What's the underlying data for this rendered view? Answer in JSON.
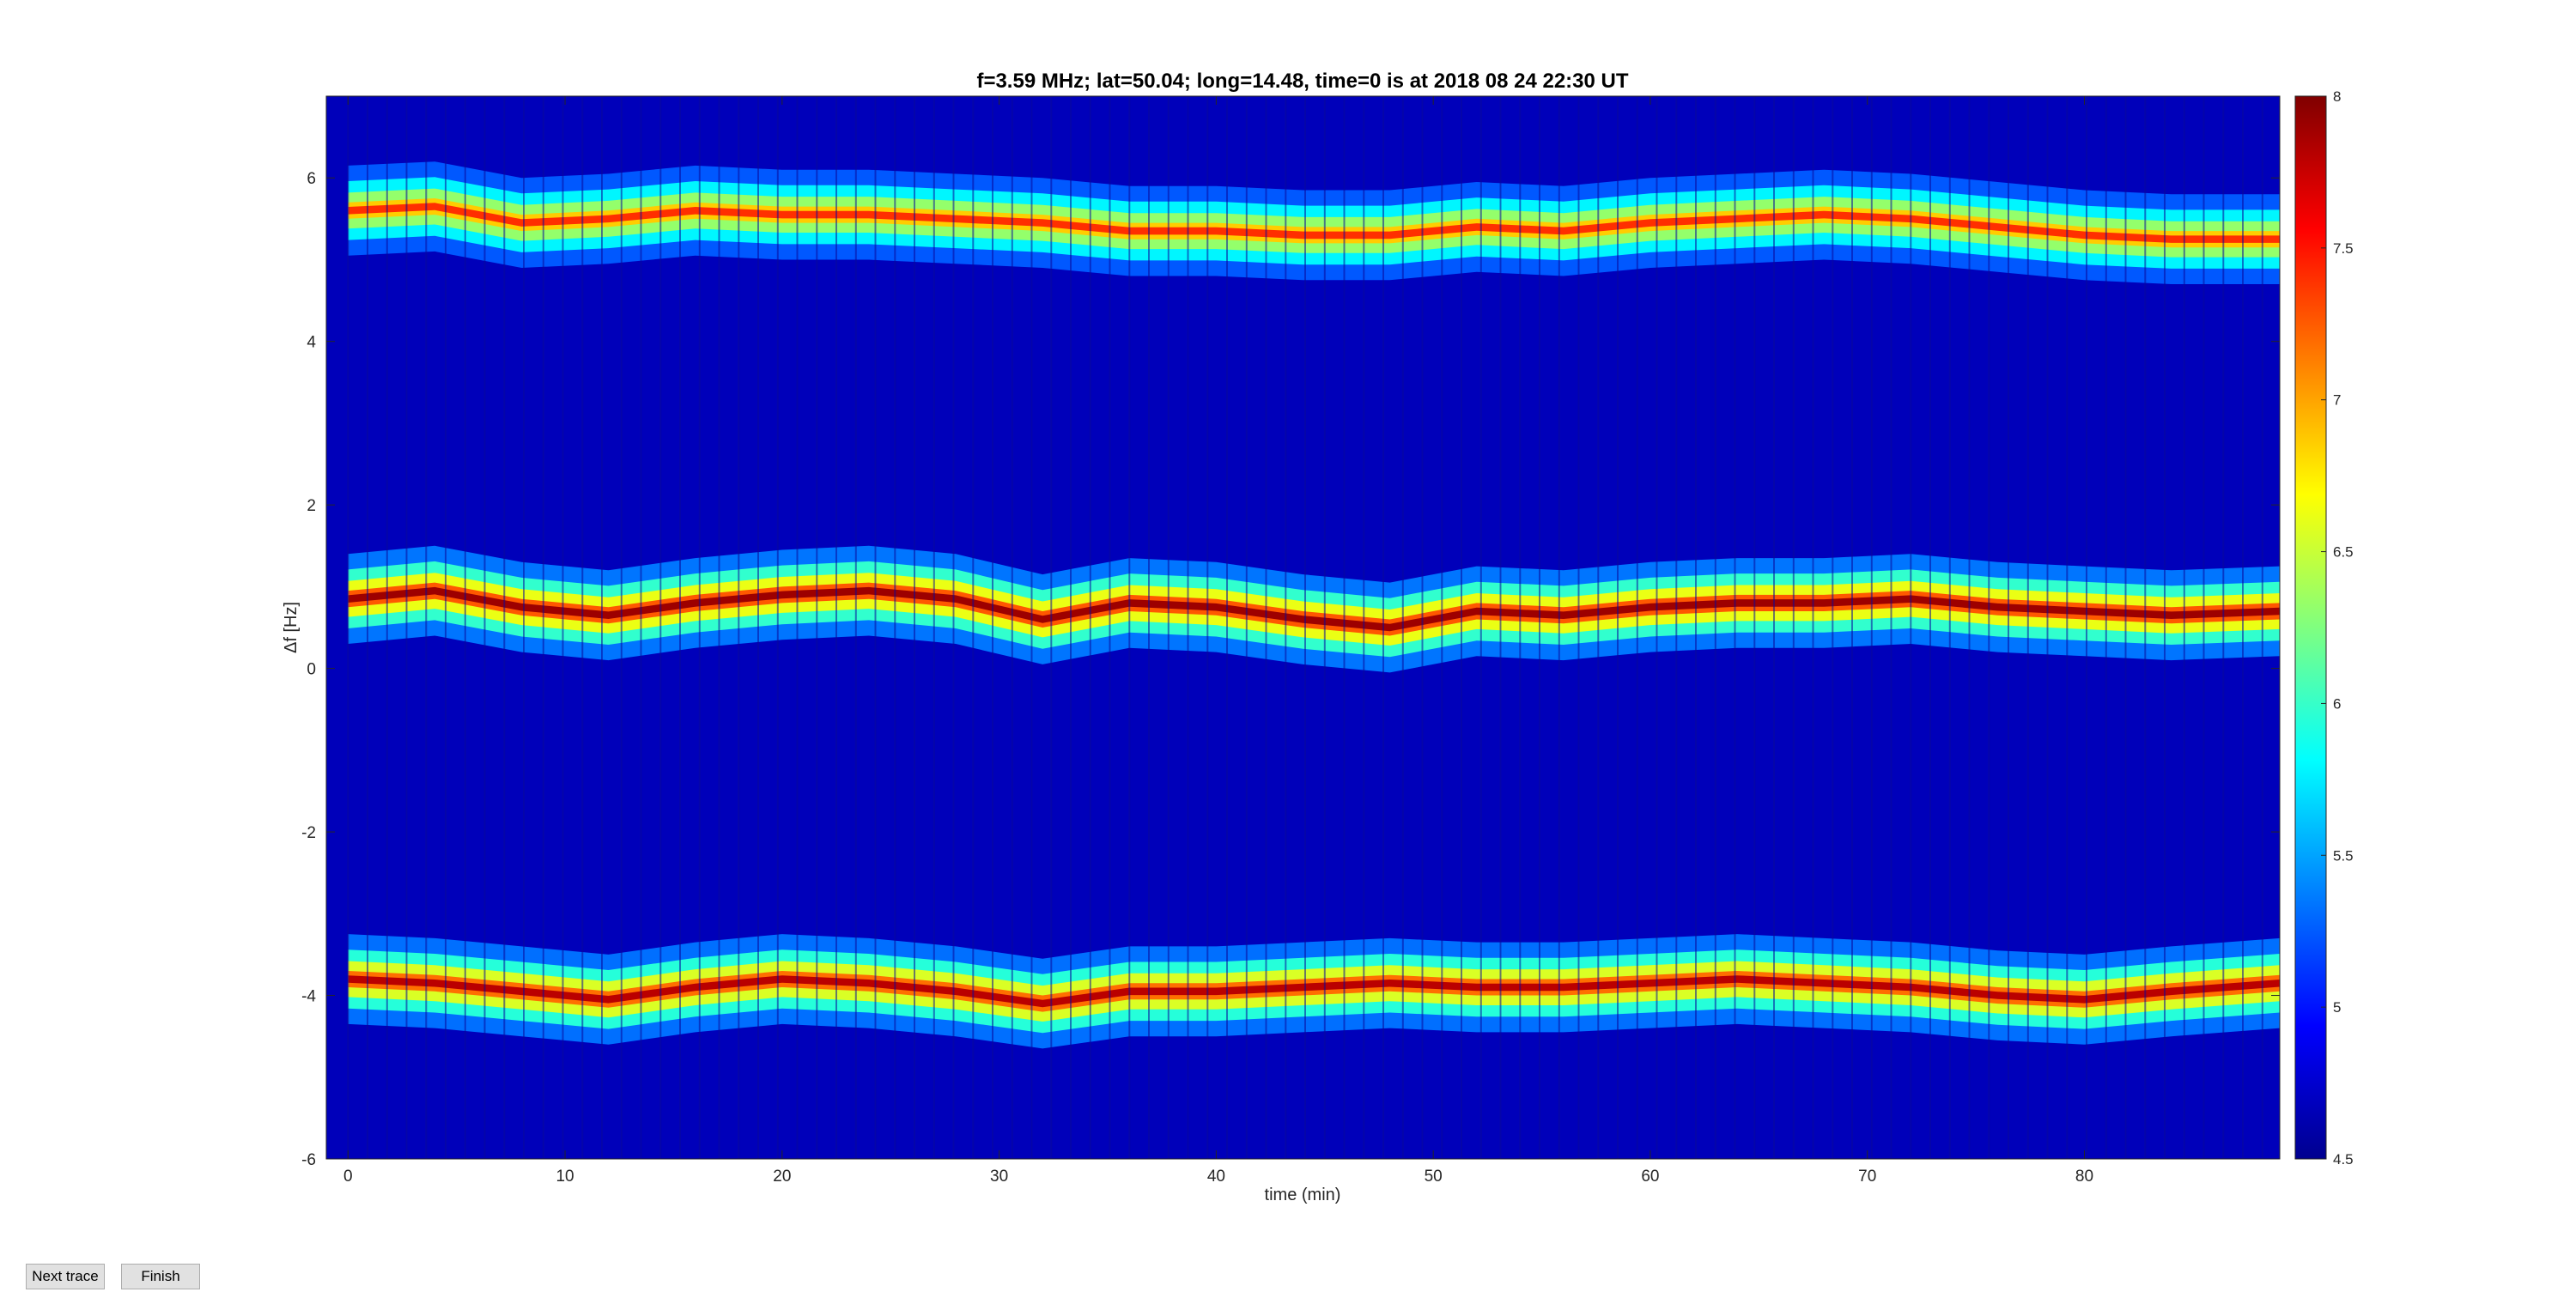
{
  "buttons": {
    "next_trace": "Next trace",
    "finish": "Finish"
  },
  "chart_data": {
    "type": "heatmap",
    "title": "f=3.59 MHz;  lat=50.04; long=14.48, time=0 is at 2018 08 24 22:30 UT",
    "xlabel": "time (min)",
    "ylabel": "Δf [Hz]",
    "xlim": [
      -1,
      89
    ],
    "ylim": [
      -6,
      7
    ],
    "xticks": [
      0,
      10,
      20,
      30,
      40,
      50,
      60,
      70,
      80
    ],
    "yticks": [
      -6,
      -4,
      -2,
      0,
      2,
      4,
      6
    ],
    "colorbar": {
      "range": [
        4.5,
        8
      ],
      "ticks": [
        4.5,
        5,
        5.5,
        6,
        6.5,
        7,
        7.5,
        8
      ],
      "colormap": "jet"
    },
    "background_value": 4.7,
    "traces": [
      {
        "x": [
          0,
          4,
          8,
          12,
          16,
          20,
          24,
          28,
          32,
          36,
          40,
          44,
          48,
          52,
          56,
          60,
          64,
          68,
          72,
          76,
          80,
          84,
          89
        ],
        "y": [
          5.6,
          5.65,
          5.45,
          5.5,
          5.6,
          5.55,
          5.55,
          5.5,
          5.45,
          5.35,
          5.35,
          5.3,
          5.3,
          5.4,
          5.35,
          5.45,
          5.5,
          5.55,
          5.5,
          5.4,
          5.3,
          5.25,
          5.25
        ],
        "peak": 7.4
      },
      {
        "x": [
          0,
          4,
          8,
          12,
          16,
          20,
          24,
          28,
          32,
          36,
          40,
          44,
          48,
          52,
          56,
          60,
          64,
          68,
          72,
          76,
          80,
          84,
          89
        ],
        "y": [
          0.85,
          0.95,
          0.75,
          0.65,
          0.8,
          0.9,
          0.95,
          0.85,
          0.6,
          0.8,
          0.75,
          0.6,
          0.5,
          0.7,
          0.65,
          0.75,
          0.8,
          0.8,
          0.85,
          0.75,
          0.7,
          0.65,
          0.7
        ],
        "peak": 7.9
      },
      {
        "x": [
          0,
          4,
          8,
          12,
          16,
          20,
          24,
          28,
          32,
          36,
          40,
          44,
          48,
          52,
          56,
          60,
          64,
          68,
          72,
          76,
          80,
          84,
          89
        ],
        "y": [
          -3.8,
          -3.85,
          -3.95,
          -4.05,
          -3.9,
          -3.8,
          -3.85,
          -3.95,
          -4.1,
          -3.95,
          -3.95,
          -3.9,
          -3.85,
          -3.9,
          -3.9,
          -3.85,
          -3.8,
          -3.85,
          -3.9,
          -4.0,
          -4.05,
          -3.95,
          -3.85
        ],
        "peak": 7.8
      }
    ]
  }
}
